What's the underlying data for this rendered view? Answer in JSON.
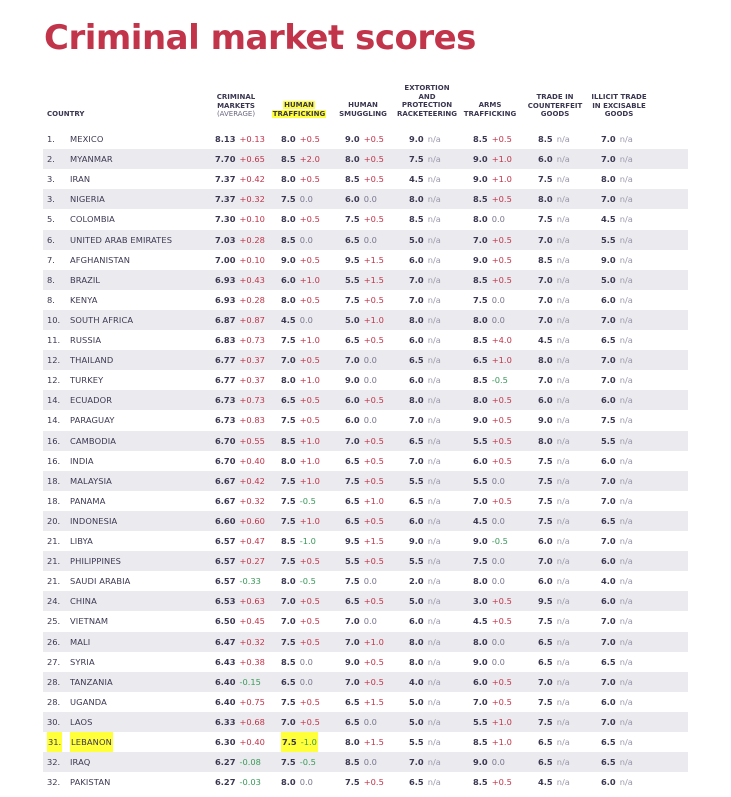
{
  "title": "Criminal market scores",
  "headers": {
    "country": "COUNTRY",
    "criminal_markets": [
      "CRIMINAL",
      "MARKETS"
    ],
    "criminal_markets_sub": "(AVERAGE)",
    "human_trafficking": [
      "HUMAN",
      "TRAFFICKING"
    ],
    "human_smuggling": [
      "HUMAN",
      "SMUGGLING"
    ],
    "extortion": [
      "EXTORTION",
      "AND",
      "PROTECTION",
      "RACKETEERING"
    ],
    "arms": [
      "ARMS",
      "TRAFFICKING"
    ],
    "counterfeit": [
      "TRADE IN",
      "COUNTERFEIT",
      "GOODS"
    ],
    "excisable": [
      "ILLICIT TRADE",
      "IN EXCISABLE",
      "GOODS"
    ]
  },
  "colors": {
    "title": "#c2344a",
    "increase": "#c2344a",
    "decrease": "#3a9a5a",
    "highlight": "#ffff3a",
    "stripe": "#ebebef"
  },
  "highlighted_row_index": 30,
  "rows": [
    {
      "rank": "1.",
      "country": "MEXICO",
      "cells": [
        [
          "8.13",
          "+0.13"
        ],
        [
          "8.0",
          "+0.5"
        ],
        [
          "9.0",
          "+0.5"
        ],
        [
          "9.0",
          "n/a"
        ],
        [
          "8.5",
          "+0.5"
        ],
        [
          "8.5",
          "n/a"
        ],
        [
          "7.0",
          "n/a"
        ]
      ]
    },
    {
      "rank": "2.",
      "country": "MYANMAR",
      "cells": [
        [
          "7.70",
          "+0.65"
        ],
        [
          "8.5",
          "+2.0"
        ],
        [
          "8.0",
          "+0.5"
        ],
        [
          "7.5",
          "n/a"
        ],
        [
          "9.0",
          "+1.0"
        ],
        [
          "6.0",
          "n/a"
        ],
        [
          "7.0",
          "n/a"
        ]
      ]
    },
    {
      "rank": "3.",
      "country": "IRAN",
      "cells": [
        [
          "7.37",
          "+0.42"
        ],
        [
          "8.0",
          "+0.5"
        ],
        [
          "8.5",
          "+0.5"
        ],
        [
          "4.5",
          "n/a"
        ],
        [
          "9.0",
          "+1.0"
        ],
        [
          "7.5",
          "n/a"
        ],
        [
          "8.0",
          "n/a"
        ]
      ]
    },
    {
      "rank": "3.",
      "country": "NIGERIA",
      "cells": [
        [
          "7.37",
          "+0.32"
        ],
        [
          "7.5",
          "0.0"
        ],
        [
          "6.0",
          "0.0"
        ],
        [
          "8.0",
          "n/a"
        ],
        [
          "8.5",
          "+0.5"
        ],
        [
          "8.0",
          "n/a"
        ],
        [
          "7.0",
          "n/a"
        ]
      ]
    },
    {
      "rank": "5.",
      "country": "COLOMBIA",
      "cells": [
        [
          "7.30",
          "+0.10"
        ],
        [
          "8.0",
          "+0.5"
        ],
        [
          "7.5",
          "+0.5"
        ],
        [
          "8.5",
          "n/a"
        ],
        [
          "8.0",
          "0.0"
        ],
        [
          "7.5",
          "n/a"
        ],
        [
          "4.5",
          "n/a"
        ]
      ]
    },
    {
      "rank": "6.",
      "country": "UNITED ARAB EMIRATES",
      "cells": [
        [
          "7.03",
          "+0.28"
        ],
        [
          "8.5",
          "0.0"
        ],
        [
          "6.5",
          "0.0"
        ],
        [
          "5.0",
          "n/a"
        ],
        [
          "7.0",
          "+0.5"
        ],
        [
          "7.0",
          "n/a"
        ],
        [
          "5.5",
          "n/a"
        ]
      ]
    },
    {
      "rank": "7.",
      "country": "AFGHANISTAN",
      "cells": [
        [
          "7.00",
          "+0.10"
        ],
        [
          "9.0",
          "+0.5"
        ],
        [
          "9.5",
          "+1.5"
        ],
        [
          "6.0",
          "n/a"
        ],
        [
          "9.0",
          "+0.5"
        ],
        [
          "8.5",
          "n/a"
        ],
        [
          "9.0",
          "n/a"
        ]
      ]
    },
    {
      "rank": "8.",
      "country": "BRAZIL",
      "cells": [
        [
          "6.93",
          "+0.43"
        ],
        [
          "6.0",
          "+1.0"
        ],
        [
          "5.5",
          "+1.5"
        ],
        [
          "7.0",
          "n/a"
        ],
        [
          "8.5",
          "+0.5"
        ],
        [
          "7.0",
          "n/a"
        ],
        [
          "5.0",
          "n/a"
        ]
      ]
    },
    {
      "rank": "8.",
      "country": "KENYA",
      "cells": [
        [
          "6.93",
          "+0.28"
        ],
        [
          "8.0",
          "+0.5"
        ],
        [
          "7.5",
          "+0.5"
        ],
        [
          "7.0",
          "n/a"
        ],
        [
          "7.5",
          "0.0"
        ],
        [
          "7.0",
          "n/a"
        ],
        [
          "6.0",
          "n/a"
        ]
      ]
    },
    {
      "rank": "10.",
      "country": "SOUTH AFRICA",
      "cells": [
        [
          "6.87",
          "+0.87"
        ],
        [
          "4.5",
          "0.0"
        ],
        [
          "5.0",
          "+1.0"
        ],
        [
          "8.0",
          "n/a"
        ],
        [
          "8.0",
          "0.0"
        ],
        [
          "7.0",
          "n/a"
        ],
        [
          "7.0",
          "n/a"
        ]
      ]
    },
    {
      "rank": "11.",
      "country": "RUSSIA",
      "cells": [
        [
          "6.83",
          "+0.73"
        ],
        [
          "7.5",
          "+1.0"
        ],
        [
          "6.5",
          "+0.5"
        ],
        [
          "6.0",
          "n/a"
        ],
        [
          "8.5",
          "+4.0"
        ],
        [
          "4.5",
          "n/a"
        ],
        [
          "6.5",
          "n/a"
        ]
      ]
    },
    {
      "rank": "12.",
      "country": "THAILAND",
      "cells": [
        [
          "6.77",
          "+0.37"
        ],
        [
          "7.0",
          "+0.5"
        ],
        [
          "7.0",
          "0.0"
        ],
        [
          "6.5",
          "n/a"
        ],
        [
          "6.5",
          "+1.0"
        ],
        [
          "8.0",
          "n/a"
        ],
        [
          "7.0",
          "n/a"
        ]
      ]
    },
    {
      "rank": "12.",
      "country": "TURKEY",
      "cells": [
        [
          "6.77",
          "+0.37"
        ],
        [
          "8.0",
          "+1.0"
        ],
        [
          "9.0",
          "0.0"
        ],
        [
          "6.0",
          "n/a"
        ],
        [
          "8.5",
          "-0.5"
        ],
        [
          "7.0",
          "n/a"
        ],
        [
          "7.0",
          "n/a"
        ]
      ]
    },
    {
      "rank": "14.",
      "country": "ECUADOR",
      "cells": [
        [
          "6.73",
          "+0.73"
        ],
        [
          "6.5",
          "+0.5"
        ],
        [
          "6.0",
          "+0.5"
        ],
        [
          "8.0",
          "n/a"
        ],
        [
          "8.0",
          "+0.5"
        ],
        [
          "6.0",
          "n/a"
        ],
        [
          "6.0",
          "n/a"
        ]
      ]
    },
    {
      "rank": "14.",
      "country": "PARAGUAY",
      "cells": [
        [
          "6.73",
          "+0.83"
        ],
        [
          "7.5",
          "+0.5"
        ],
        [
          "6.0",
          "0.0"
        ],
        [
          "7.0",
          "n/a"
        ],
        [
          "9.0",
          "+0.5"
        ],
        [
          "9.0",
          "n/a"
        ],
        [
          "7.5",
          "n/a"
        ]
      ]
    },
    {
      "rank": "16.",
      "country": "CAMBODIA",
      "cells": [
        [
          "6.70",
          "+0.55"
        ],
        [
          "8.5",
          "+1.0"
        ],
        [
          "7.0",
          "+0.5"
        ],
        [
          "6.5",
          "n/a"
        ],
        [
          "5.5",
          "+0.5"
        ],
        [
          "8.0",
          "n/a"
        ],
        [
          "5.5",
          "n/a"
        ]
      ]
    },
    {
      "rank": "16.",
      "country": "INDIA",
      "cells": [
        [
          "6.70",
          "+0.40"
        ],
        [
          "8.0",
          "+1.0"
        ],
        [
          "6.5",
          "+0.5"
        ],
        [
          "7.0",
          "n/a"
        ],
        [
          "6.0",
          "+0.5"
        ],
        [
          "7.5",
          "n/a"
        ],
        [
          "6.0",
          "n/a"
        ]
      ]
    },
    {
      "rank": "18.",
      "country": "MALAYSIA",
      "cells": [
        [
          "6.67",
          "+0.42"
        ],
        [
          "7.5",
          "+1.0"
        ],
        [
          "7.5",
          "+0.5"
        ],
        [
          "5.5",
          "n/a"
        ],
        [
          "5.5",
          "0.0"
        ],
        [
          "7.5",
          "n/a"
        ],
        [
          "7.0",
          "n/a"
        ]
      ]
    },
    {
      "rank": "18.",
      "country": "PANAMA",
      "cells": [
        [
          "6.67",
          "+0.32"
        ],
        [
          "7.5",
          "-0.5"
        ],
        [
          "6.5",
          "+1.0"
        ],
        [
          "6.5",
          "n/a"
        ],
        [
          "7.0",
          "+0.5"
        ],
        [
          "7.5",
          "n/a"
        ],
        [
          "7.0",
          "n/a"
        ]
      ]
    },
    {
      "rank": "20.",
      "country": "INDONESIA",
      "cells": [
        [
          "6.60",
          "+0.60"
        ],
        [
          "7.5",
          "+1.0"
        ],
        [
          "6.5",
          "+0.5"
        ],
        [
          "6.0",
          "n/a"
        ],
        [
          "4.5",
          "0.0"
        ],
        [
          "7.5",
          "n/a"
        ],
        [
          "6.5",
          "n/a"
        ]
      ]
    },
    {
      "rank": "21.",
      "country": "LIBYA",
      "cells": [
        [
          "6.57",
          "+0.47"
        ],
        [
          "8.5",
          "-1.0"
        ],
        [
          "9.5",
          "+1.5"
        ],
        [
          "9.0",
          "n/a"
        ],
        [
          "9.0",
          "-0.5"
        ],
        [
          "6.0",
          "n/a"
        ],
        [
          "7.0",
          "n/a"
        ]
      ]
    },
    {
      "rank": "21.",
      "country": "PHILIPPINES",
      "cells": [
        [
          "6.57",
          "+0.27"
        ],
        [
          "7.5",
          "+0.5"
        ],
        [
          "5.5",
          "+0.5"
        ],
        [
          "5.5",
          "n/a"
        ],
        [
          "7.5",
          "0.0"
        ],
        [
          "7.0",
          "n/a"
        ],
        [
          "6.0",
          "n/a"
        ]
      ]
    },
    {
      "rank": "21.",
      "country": "SAUDI ARABIA",
      "cells": [
        [
          "6.57",
          "-0.33"
        ],
        [
          "8.0",
          "-0.5"
        ],
        [
          "7.5",
          "0.0"
        ],
        [
          "2.0",
          "n/a"
        ],
        [
          "8.0",
          "0.0"
        ],
        [
          "6.0",
          "n/a"
        ],
        [
          "4.0",
          "n/a"
        ]
      ]
    },
    {
      "rank": "24.",
      "country": "CHINA",
      "cells": [
        [
          "6.53",
          "+0.63"
        ],
        [
          "7.0",
          "+0.5"
        ],
        [
          "6.5",
          "+0.5"
        ],
        [
          "5.0",
          "n/a"
        ],
        [
          "3.0",
          "+0.5"
        ],
        [
          "9.5",
          "n/a"
        ],
        [
          "6.0",
          "n/a"
        ]
      ]
    },
    {
      "rank": "25.",
      "country": "VIETNAM",
      "cells": [
        [
          "6.50",
          "+0.45"
        ],
        [
          "7.0",
          "+0.5"
        ],
        [
          "7.0",
          "0.0"
        ],
        [
          "6.0",
          "n/a"
        ],
        [
          "4.5",
          "+0.5"
        ],
        [
          "7.5",
          "n/a"
        ],
        [
          "7.0",
          "n/a"
        ]
      ]
    },
    {
      "rank": "26.",
      "country": "MALI",
      "cells": [
        [
          "6.47",
          "+0.32"
        ],
        [
          "7.5",
          "+0.5"
        ],
        [
          "7.0",
          "+1.0"
        ],
        [
          "8.0",
          "n/a"
        ],
        [
          "8.0",
          "0.0"
        ],
        [
          "6.5",
          "n/a"
        ],
        [
          "7.0",
          "n/a"
        ]
      ]
    },
    {
      "rank": "27.",
      "country": "SYRIA",
      "cells": [
        [
          "6.43",
          "+0.38"
        ],
        [
          "8.5",
          "0.0"
        ],
        [
          "9.0",
          "+0.5"
        ],
        [
          "8.0",
          "n/a"
        ],
        [
          "9.0",
          "0.0"
        ],
        [
          "6.5",
          "n/a"
        ],
        [
          "6.5",
          "n/a"
        ]
      ]
    },
    {
      "rank": "28.",
      "country": "TANZANIA",
      "cells": [
        [
          "6.40",
          "-0.15"
        ],
        [
          "6.5",
          "0.0"
        ],
        [
          "7.0",
          "+0.5"
        ],
        [
          "4.0",
          "n/a"
        ],
        [
          "6.0",
          "+0.5"
        ],
        [
          "7.0",
          "n/a"
        ],
        [
          "7.0",
          "n/a"
        ]
      ]
    },
    {
      "rank": "28.",
      "country": "UGANDA",
      "cells": [
        [
          "6.40",
          "+0.75"
        ],
        [
          "7.5",
          "+0.5"
        ],
        [
          "6.5",
          "+1.5"
        ],
        [
          "5.0",
          "n/a"
        ],
        [
          "7.0",
          "+0.5"
        ],
        [
          "7.5",
          "n/a"
        ],
        [
          "6.0",
          "n/a"
        ]
      ]
    },
    {
      "rank": "30.",
      "country": "LAOS",
      "cells": [
        [
          "6.33",
          "+0.68"
        ],
        [
          "7.0",
          "+0.5"
        ],
        [
          "6.5",
          "0.0"
        ],
        [
          "5.0",
          "n/a"
        ],
        [
          "5.5",
          "+1.0"
        ],
        [
          "7.5",
          "n/a"
        ],
        [
          "7.0",
          "n/a"
        ]
      ]
    },
    {
      "rank": "31.",
      "country": "LEBANON",
      "cells": [
        [
          "6.30",
          "+0.40"
        ],
        [
          "7.5",
          "-1.0"
        ],
        [
          "8.0",
          "+1.5"
        ],
        [
          "5.5",
          "n/a"
        ],
        [
          "8.5",
          "+1.0"
        ],
        [
          "6.5",
          "n/a"
        ],
        [
          "6.5",
          "n/a"
        ]
      ]
    },
    {
      "rank": "32.",
      "country": "IRAQ",
      "cells": [
        [
          "6.27",
          "-0.08"
        ],
        [
          "7.5",
          "-0.5"
        ],
        [
          "8.5",
          "0.0"
        ],
        [
          "7.0",
          "n/a"
        ],
        [
          "9.0",
          "0.0"
        ],
        [
          "6.5",
          "n/a"
        ],
        [
          "6.5",
          "n/a"
        ]
      ]
    },
    {
      "rank": "32.",
      "country": "PAKISTAN",
      "cells": [
        [
          "6.27",
          "-0.03"
        ],
        [
          "8.0",
          "0.0"
        ],
        [
          "7.5",
          "+0.5"
        ],
        [
          "6.5",
          "n/a"
        ],
        [
          "8.5",
          "+0.5"
        ],
        [
          "4.5",
          "n/a"
        ],
        [
          "6.0",
          "n/a"
        ]
      ]
    }
  ]
}
